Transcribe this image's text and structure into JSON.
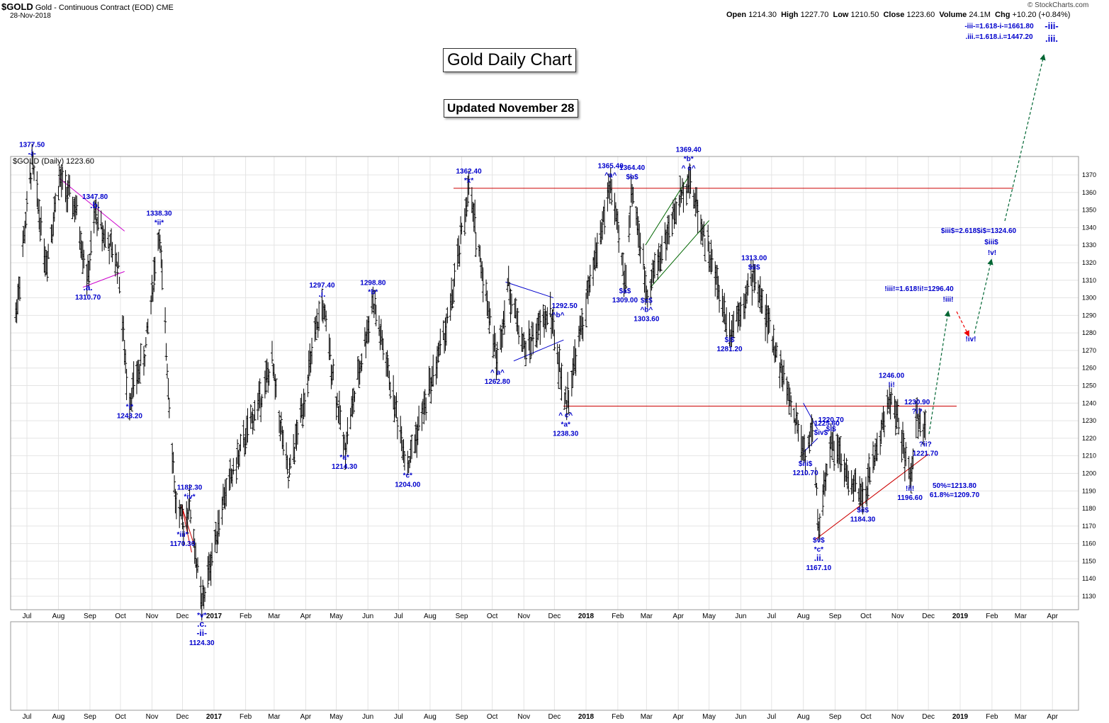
{
  "header": {
    "symbol": "$GOLD",
    "description": "Gold - Continuous Contract (EOD)",
    "exchange": "CME",
    "date": "28-Nov-2018",
    "open_label": "Open",
    "open": "1214.30",
    "high_label": "High",
    "high": "1227.70",
    "low_label": "Low",
    "low": "1210.50",
    "close_label": "Close",
    "close": "1223.60",
    "volume_label": "Volume",
    "volume": "24.1M",
    "chg_label": "Chg",
    "chg": "+10.20 (+0.84%)",
    "watermark": "© StockCharts.com"
  },
  "legend": "$GOLD (Daily) 1223.60",
  "titles": {
    "main": "Gold Daily Chart",
    "updated": "Updated November 28"
  },
  "colors": {
    "candle": "#000000",
    "label": "#0000cc",
    "trend": "#cc0000",
    "triangle1": "#cc00cc",
    "triangle2": "#0000cc",
    "channel": "#006600",
    "projection": "#006633",
    "red_arrow": "#ee0000"
  },
  "chart_data": {
    "type": "bar",
    "title": "Gold Daily Chart",
    "ylim": [
      1120,
      1380
    ],
    "y_ticks": [
      1130,
      1140,
      1150,
      1160,
      1170,
      1180,
      1190,
      1200,
      1210,
      1220,
      1230,
      1240,
      1250,
      1260,
      1270,
      1280,
      1290,
      1300,
      1310,
      1320,
      1330,
      1340,
      1350,
      1360,
      1370
    ],
    "x_months": [
      {
        "label": "Jul",
        "date": "2016-07-01"
      },
      {
        "label": "Aug",
        "date": "2016-08-01"
      },
      {
        "label": "Sep",
        "date": "2016-09-01"
      },
      {
        "label": "Oct",
        "date": "2016-10-01"
      },
      {
        "label": "Nov",
        "date": "2016-11-01"
      },
      {
        "label": "Dec",
        "date": "2016-12-01"
      },
      {
        "label": "2017",
        "date": "2017-01-01",
        "bold": true
      },
      {
        "label": "Feb",
        "date": "2017-02-01"
      },
      {
        "label": "Mar",
        "date": "2017-03-01"
      },
      {
        "label": "Apr",
        "date": "2017-04-01"
      },
      {
        "label": "May",
        "date": "2017-05-01"
      },
      {
        "label": "Jun",
        "date": "2017-06-01"
      },
      {
        "label": "Jul",
        "date": "2017-07-01"
      },
      {
        "label": "Aug",
        "date": "2017-08-01"
      },
      {
        "label": "Sep",
        "date": "2017-09-01"
      },
      {
        "label": "Oct",
        "date": "2017-10-01"
      },
      {
        "label": "Nov",
        "date": "2017-11-01"
      },
      {
        "label": "Dec",
        "date": "2017-12-01"
      },
      {
        "label": "2018",
        "date": "2018-01-01",
        "bold": true
      },
      {
        "label": "Feb",
        "date": "2018-02-01"
      },
      {
        "label": "Mar",
        "date": "2018-03-01"
      },
      {
        "label": "Apr",
        "date": "2018-04-01"
      },
      {
        "label": "May",
        "date": "2018-05-01"
      },
      {
        "label": "Jun",
        "date": "2018-06-01"
      },
      {
        "label": "Jul",
        "date": "2018-07-01"
      },
      {
        "label": "Aug",
        "date": "2018-08-01"
      },
      {
        "label": "Sep",
        "date": "2018-09-01"
      },
      {
        "label": "Oct",
        "date": "2018-10-01"
      },
      {
        "label": "Nov",
        "date": "2018-11-01"
      },
      {
        "label": "Dec",
        "date": "2018-12-01"
      },
      {
        "label": "2019",
        "date": "2019-01-01",
        "bold": true
      },
      {
        "label": "Feb",
        "date": "2019-02-01"
      },
      {
        "label": "Mar",
        "date": "2019-03-01"
      },
      {
        "label": "Apr",
        "date": "2019-04-01"
      }
    ],
    "price_path": [
      [
        "2016-06-20",
        1290
      ],
      [
        "2016-07-06",
        1377.5
      ],
      [
        "2016-07-20",
        1320
      ],
      [
        "2016-08-02",
        1368
      ],
      [
        "2016-08-18",
        1350
      ],
      [
        "2016-08-30",
        1310.7
      ],
      [
        "2016-09-06",
        1347.8
      ],
      [
        "2016-09-29",
        1318
      ],
      [
        "2016-10-07",
        1253
      ],
      [
        "2016-10-10",
        1243.2
      ],
      [
        "2016-10-25",
        1268
      ],
      [
        "2016-11-08",
        1338.3
      ],
      [
        "2016-11-24",
        1185
      ],
      [
        "2016-12-01",
        1170.3
      ],
      [
        "2016-12-08",
        1182.3
      ],
      [
        "2016-12-20",
        1124.3
      ],
      [
        "2017-01-10",
        1185
      ],
      [
        "2017-02-27",
        1262
      ],
      [
        "2017-03-15",
        1196
      ],
      [
        "2017-04-17",
        1297.4
      ],
      [
        "2017-05-09",
        1214.3
      ],
      [
        "2017-06-06",
        1298.8
      ],
      [
        "2017-07-10",
        1204
      ],
      [
        "2017-08-20",
        1290
      ],
      [
        "2017-09-08",
        1362.4
      ],
      [
        "2017-10-06",
        1262.8
      ],
      [
        "2017-10-16",
        1308
      ],
      [
        "2017-11-02",
        1270
      ],
      [
        "2017-11-27",
        1292.5
      ],
      [
        "2017-12-12",
        1238.3
      ],
      [
        "2018-01-25",
        1365.4
      ],
      [
        "2018-02-08",
        1309
      ],
      [
        "2018-02-15",
        1364.4
      ],
      [
        "2018-03-01",
        1303.6
      ],
      [
        "2018-04-11",
        1369.4
      ],
      [
        "2018-05-21",
        1281.2
      ],
      [
        "2018-06-14",
        1313
      ],
      [
        "2018-08-03",
        1210.7
      ],
      [
        "2018-08-10",
        1225.6
      ],
      [
        "2018-08-16",
        1167.1
      ],
      [
        "2018-08-28",
        1220.7
      ],
      [
        "2018-09-15",
        1195
      ],
      [
        "2018-09-28",
        1184.3
      ],
      [
        "2018-10-26",
        1246
      ],
      [
        "2018-11-13",
        1196.6
      ],
      [
        "2018-11-20",
        1230.9
      ],
      [
        "2018-11-28",
        1221.7
      ]
    ],
    "horizontal_lines": [
      1362.4,
      1238.3
    ],
    "wave_labels": [
      {
        "date": "2016-07-06",
        "price": 1377.5,
        "text": [
          "1377.50",
          "-i-"
        ],
        "pos": "above"
      },
      {
        "date": "2016-08-30",
        "price": 1310.7,
        "text": [
          ".a.",
          "1310.70"
        ],
        "pos": "below"
      },
      {
        "date": "2016-09-06",
        "price": 1347.8,
        "text": [
          "1347.80",
          ".b."
        ],
        "pos": "above"
      },
      {
        "date": "2016-10-10",
        "price": 1243.2,
        "text": [
          "*i*",
          "1243.20"
        ],
        "pos": "below"
      },
      {
        "date": "2016-11-08",
        "price": 1338.3,
        "text": [
          "1338.30",
          "*ii*"
        ],
        "pos": "above"
      },
      {
        "date": "2016-12-01",
        "price": 1170.3,
        "text": [
          "*iii*",
          "1170.30"
        ],
        "pos": "below"
      },
      {
        "date": "2016-12-08",
        "price": 1182.3,
        "text": [
          "1182.30",
          "*iv*"
        ],
        "pos": "above"
      },
      {
        "date": "2016-12-20",
        "price": 1124.3,
        "text": [
          "*v*",
          ".c.",
          "-ii-",
          "1124.30"
        ],
        "pos": "below"
      },
      {
        "date": "2017-04-17",
        "price": 1297.4,
        "text": [
          "1297.40",
          ".i."
        ],
        "pos": "above"
      },
      {
        "date": "2017-05-09",
        "price": 1214.3,
        "text": [
          "*a*",
          "1214.30"
        ],
        "pos": "below"
      },
      {
        "date": "2017-06-06",
        "price": 1298.8,
        "text": [
          "1298.80",
          "*b*"
        ],
        "pos": "above"
      },
      {
        "date": "2017-07-10",
        "price": 1204.0,
        "text": [
          "*c*",
          "1204.00"
        ],
        "pos": "below"
      },
      {
        "date": "2017-09-08",
        "price": 1362.4,
        "text": [
          "1362.40",
          "*x*"
        ],
        "pos": "above"
      },
      {
        "date": "2017-10-06",
        "price": 1262.8,
        "text": [
          "^ a^",
          "1262.80"
        ],
        "pos": "below"
      },
      {
        "date": "2017-11-27",
        "price": 1292.5,
        "text": [
          "1292.50",
          "^b^"
        ],
        "pos": "right"
      },
      {
        "date": "2017-12-12",
        "price": 1238.3,
        "text": [
          "^ c^",
          "*a*",
          "1238.30"
        ],
        "pos": "below"
      },
      {
        "date": "2018-01-25",
        "price": 1365.4,
        "text": [
          "1365.40",
          "^a^"
        ],
        "pos": "above"
      },
      {
        "date": "2018-02-08",
        "price": 1309.0,
        "text": [
          "$a$",
          "1309.00"
        ],
        "pos": "below"
      },
      {
        "date": "2018-02-15",
        "price": 1364.4,
        "text": [
          "1364.40",
          "$b$"
        ],
        "pos": "above"
      },
      {
        "date": "2018-03-01",
        "price": 1303.6,
        "text": [
          "$c$",
          "^b^",
          "1303.60"
        ],
        "pos": "below"
      },
      {
        "date": "2018-04-11",
        "price": 1369.4,
        "text": [
          "1369.40",
          "*b*",
          "^ c^"
        ],
        "pos": "above"
      },
      {
        "date": "2018-05-21",
        "price": 1281.2,
        "text": [
          "$i$",
          "1281.20"
        ],
        "pos": "below"
      },
      {
        "date": "2018-06-14",
        "price": 1313.0,
        "text": [
          "1313.00",
          "$ii$"
        ],
        "pos": "above"
      },
      {
        "date": "2018-08-03",
        "price": 1210.7,
        "text": [
          "$iii$",
          "1210.70"
        ],
        "pos": "below"
      },
      {
        "date": "2018-08-10",
        "price": 1225.6,
        "text": [
          "1225.60",
          "$iv$"
        ],
        "pos": "right"
      },
      {
        "date": "2018-08-16",
        "price": 1167.1,
        "text": [
          "$v$",
          "*c*",
          ".ii.",
          "1167.10"
        ],
        "pos": "below"
      },
      {
        "date": "2018-08-28",
        "price": 1220.7,
        "text": [
          "1220.70",
          "$i$"
        ],
        "pos": "above"
      },
      {
        "date": "2018-09-28",
        "price": 1184.3,
        "text": [
          "$ii$",
          "1184.30"
        ],
        "pos": "below"
      },
      {
        "date": "2018-10-26",
        "price": 1246.0,
        "text": [
          "1246.00",
          "!i!"
        ],
        "pos": "above"
      },
      {
        "date": "2018-11-13",
        "price": 1196.6,
        "text": [
          "!ii!",
          "1196.60"
        ],
        "pos": "below"
      },
      {
        "date": "2018-11-20",
        "price": 1230.9,
        "text": [
          "1230.90",
          "?i?"
        ],
        "pos": "above"
      },
      {
        "date": "2018-11-28",
        "price": 1221.7,
        "text": [
          "?ii?",
          "1221.70"
        ],
        "pos": "below"
      }
    ],
    "projection_labels": [
      {
        "text": "!iii!=1.618!i!=1296.40"
      },
      {
        "text": "!iii!"
      },
      {
        "text": "!iv!"
      },
      {
        "text": "$iii$=2.618$i$=1324.60"
      },
      {
        "text": "$iii$"
      },
      {
        "text": "!v!"
      },
      {
        "text": "-iii-=1.618-i-=1661.80"
      },
      {
        "text": ".iii.=1.618.i.=1447.20"
      },
      {
        "text": "-iii-"
      },
      {
        "text": ".iii."
      },
      {
        "text": "50%=1213.80"
      },
      {
        "text": "61.8%=1209.70"
      }
    ]
  }
}
